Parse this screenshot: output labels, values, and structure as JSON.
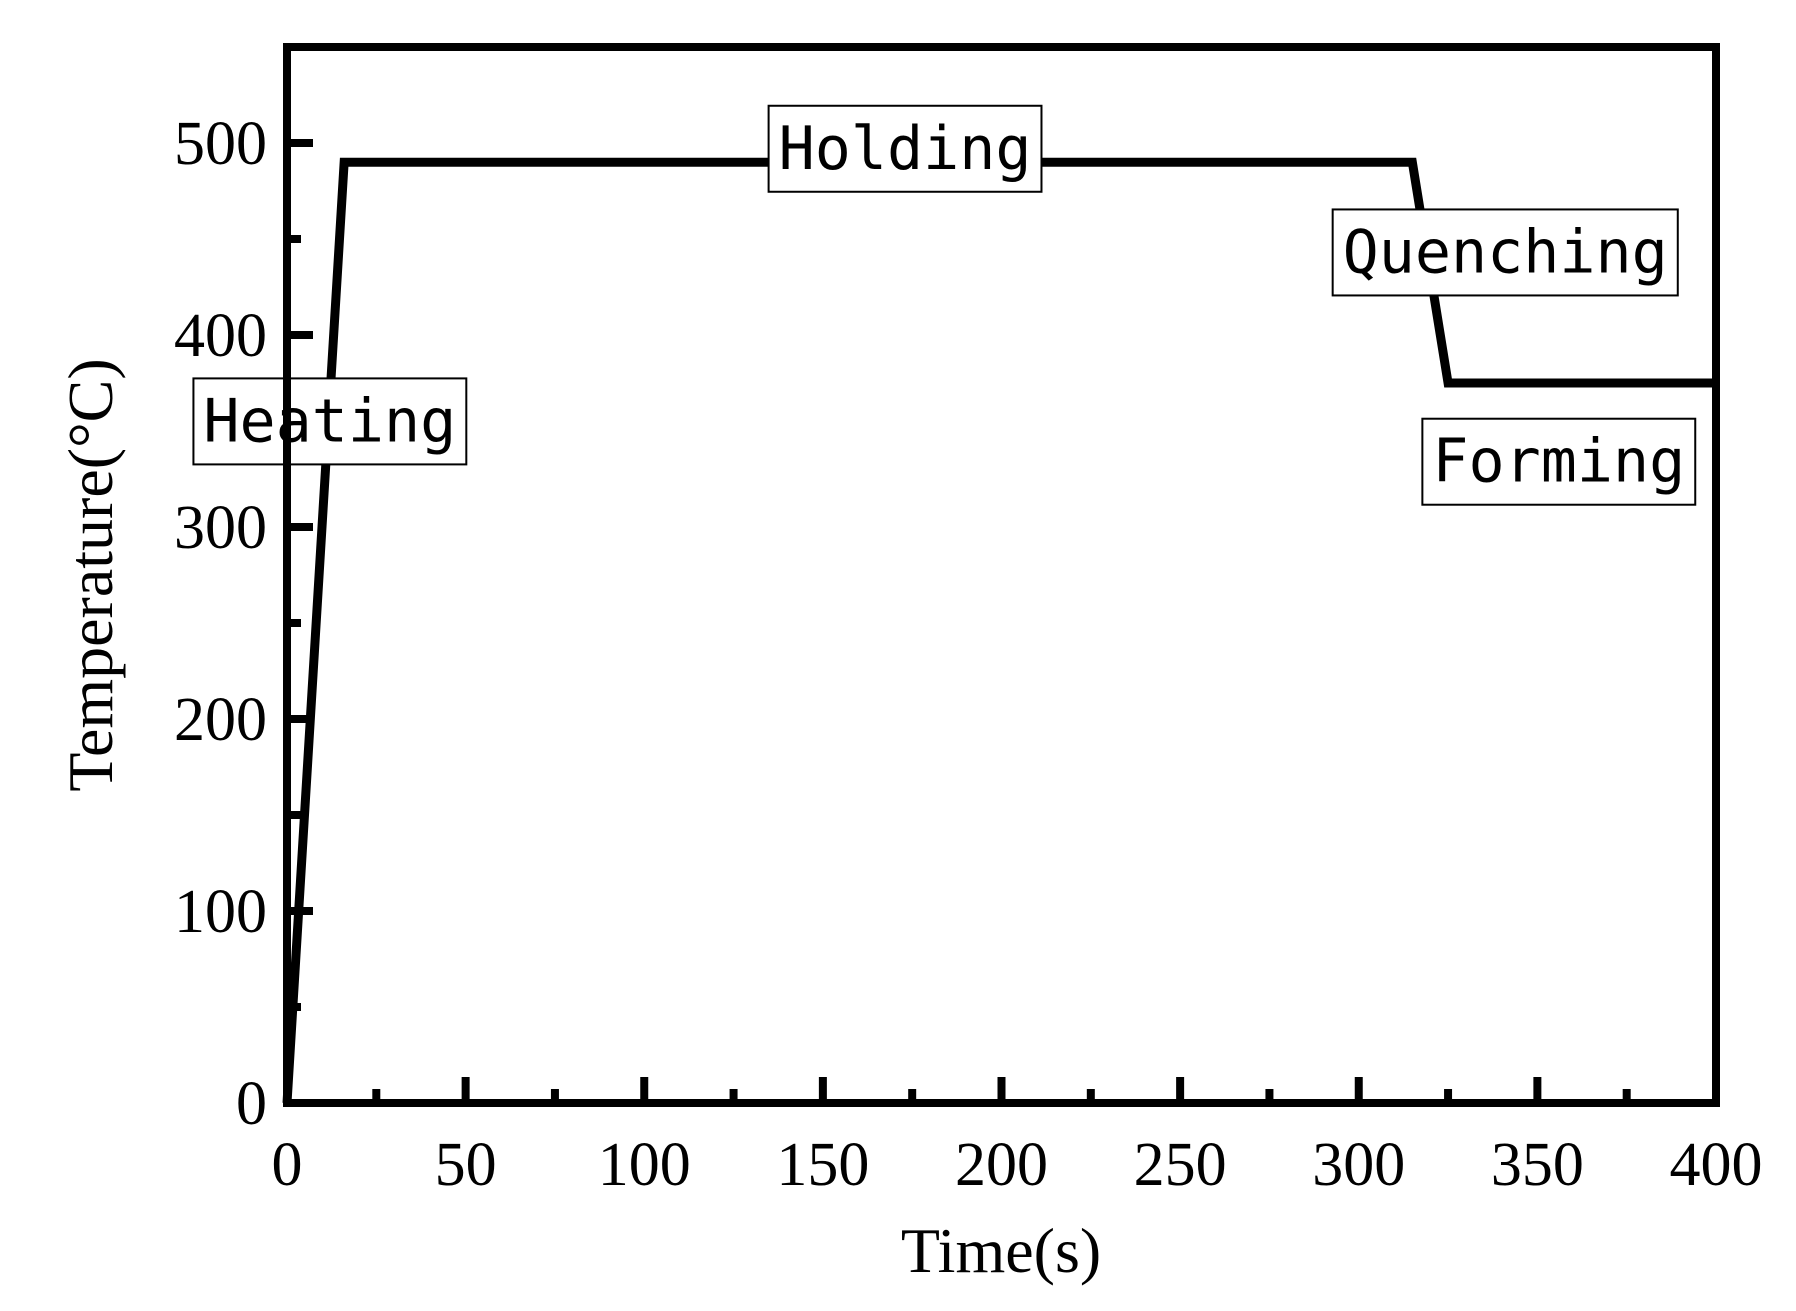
{
  "chart_data": {
    "type": "line",
    "title": "",
    "xlabel": "Time(s)",
    "ylabel": "Temperature(°C)",
    "xlim": [
      0,
      400
    ],
    "ylim": [
      0,
      500
    ],
    "y_display_max": 550,
    "grid": false,
    "legend": "none",
    "line_color": "#000000",
    "x_ticks": [
      0,
      50,
      100,
      150,
      200,
      250,
      300,
      350,
      400
    ],
    "x_tick_labels": [
      "0",
      "50",
      "100",
      "150",
      "200",
      "250",
      "300",
      "350",
      "400"
    ],
    "y_ticks": [
      0,
      100,
      200,
      300,
      400,
      500
    ],
    "y_tick_labels": [
      "0",
      "100",
      "200",
      "300",
      "400",
      "500"
    ],
    "series": [
      {
        "x": [
          0,
          16,
          315,
          325,
          400
        ],
        "y": [
          0,
          490,
          490,
          375,
          375
        ]
      }
    ],
    "annotations": [
      {
        "text": "Heating",
        "x": 12,
        "y": 355
      },
      {
        "text": "Holding",
        "x": 173,
        "y": 497
      },
      {
        "text": "Quenching",
        "x": 341,
        "y": 443
      },
      {
        "text": "Forming",
        "x": 356,
        "y": 334
      }
    ]
  }
}
